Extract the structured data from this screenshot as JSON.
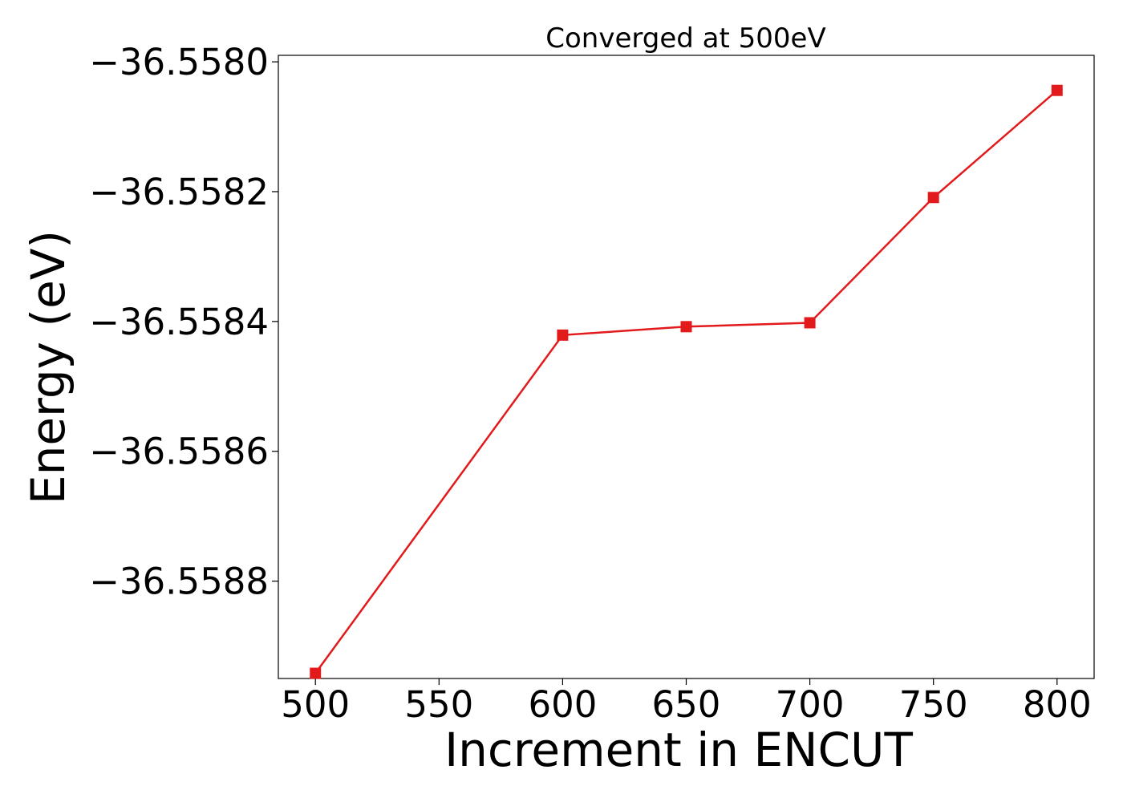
{
  "chart_data": {
    "type": "line",
    "title": "Converged at 500eV",
    "xlabel": "Increment in ENCUT",
    "ylabel": "Energy (eV)",
    "xlim": [
      485,
      815
    ],
    "ylim": [
      -36.55895,
      -36.55799
    ],
    "x_ticks": [
      500,
      550,
      600,
      650,
      700,
      750,
      800
    ],
    "x_tick_labels": [
      "500",
      "550",
      "600",
      "650",
      "700",
      "750",
      "800"
    ],
    "y_ticks": [
      -36.558,
      -36.5582,
      -36.5584,
      -36.5586,
      -36.5588
    ],
    "y_tick_labels": [
      "−36.5580",
      "−36.5582",
      "−36.5584",
      "−36.5586",
      "−36.5588"
    ],
    "grid": false,
    "series": [
      {
        "x": [
          500,
          600,
          650,
          700,
          750,
          800
        ],
        "y": [
          -36.558942,
          -36.558421,
          -36.558408,
          -36.558402,
          -36.558209,
          -36.558044
        ],
        "color": "#e31a1c",
        "marker": "square"
      }
    ]
  }
}
